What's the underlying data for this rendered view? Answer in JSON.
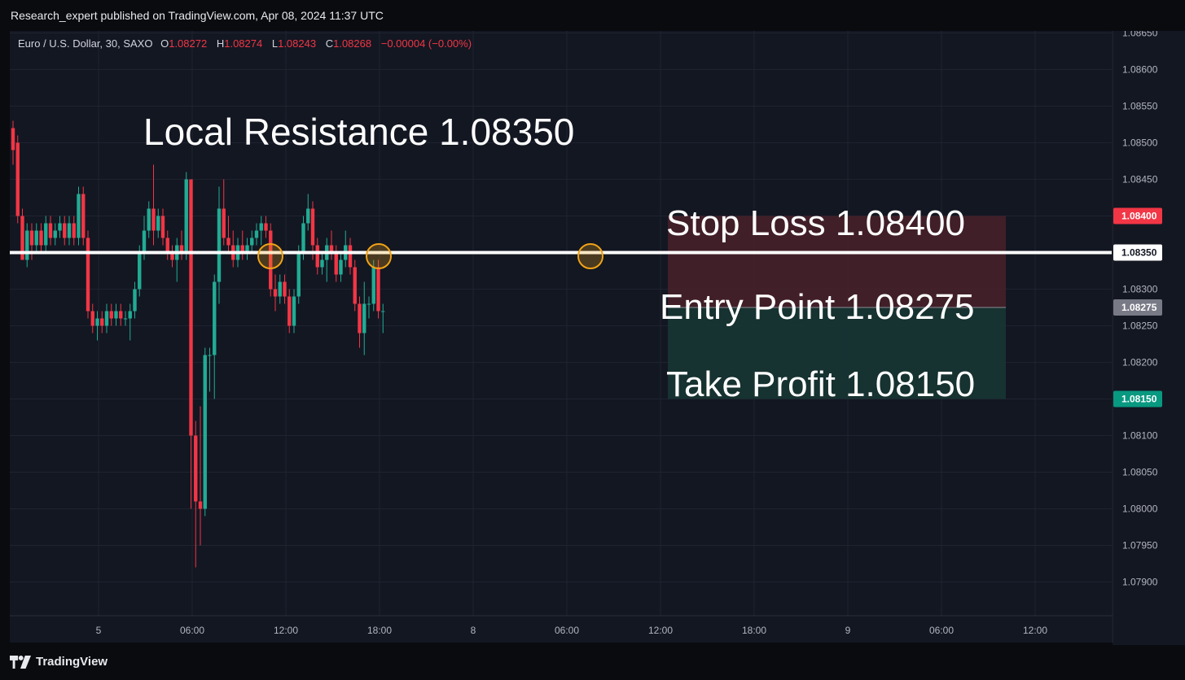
{
  "header": {
    "published": "Research_expert published on TradingView.com, Apr 08, 2024 11:37 UTC"
  },
  "legend": {
    "symbol": "Euro / U.S. Dollar, 30, SAXO",
    "o_label": "O",
    "o_value": "1.08272",
    "h_label": "H",
    "h_value": "1.08274",
    "l_label": "L",
    "l_value": "1.08243",
    "c_label": "C",
    "c_value": "1.08268",
    "change": "−0.00004 (−0.00%)"
  },
  "annotations": {
    "resistance": "Local Resistance 1.08350",
    "stop_loss": "Stop Loss 1.08400",
    "entry": "Entry Point 1.08275",
    "take_profit": "Take Profit 1.08150"
  },
  "footer": {
    "brand": "TradingView"
  },
  "colors": {
    "background": "#131722",
    "bull": "#22ab94",
    "bear": "#f23645",
    "grid": "#1f2330",
    "resistance_line": "#ffffff",
    "stop_zone": "#4a2129",
    "profit_zone": "#173533",
    "circle": "#f0a316"
  },
  "chart_data": {
    "type": "candlestick",
    "ylim": [
      1.0787,
      1.0866
    ],
    "y_ticks": [
      "1.08650",
      "1.08600",
      "1.08550",
      "1.08500",
      "1.08450",
      "1.08400",
      "1.08350",
      "1.08300",
      "1.08275",
      "1.08250",
      "1.08200",
      "1.08150",
      "1.08100",
      "1.08050",
      "1.08000",
      "1.07950",
      "1.07900"
    ],
    "x_ticks": [
      "5",
      "06:00",
      "12:00",
      "18:00",
      "8",
      "06:00",
      "12:00",
      "18:00",
      "9",
      "06:00",
      "12:00"
    ],
    "price_badges": [
      {
        "price": 1.084,
        "label": "1.08400",
        "color": "#f23645"
      },
      {
        "price": 1.0835,
        "label": "1.08350",
        "color": "#ffffff"
      },
      {
        "price": 1.08275,
        "label": "1.08275",
        "color": "#787b86"
      },
      {
        "price": 1.0815,
        "label": "1.08150",
        "color": "#089981"
      }
    ],
    "levels": {
      "resistance": 1.0835,
      "stop_loss": 1.084,
      "entry": 1.08275,
      "take_profit": 1.0815
    },
    "candles": [
      [
        1.0852,
        1.0853,
        1.0847,
        1.0849
      ],
      [
        1.085,
        1.0851,
        1.0839,
        1.084
      ],
      [
        1.084,
        1.0841,
        1.0834,
        1.0834
      ],
      [
        1.0834,
        1.0839,
        1.0833,
        1.0838
      ],
      [
        1.0838,
        1.0839,
        1.0834,
        1.0836
      ],
      [
        1.0836,
        1.0839,
        1.0835,
        1.0838
      ],
      [
        1.0838,
        1.0839,
        1.0835,
        1.0836
      ],
      [
        1.0836,
        1.084,
        1.0835,
        1.0839
      ],
      [
        1.0839,
        1.084,
        1.0836,
        1.0837
      ],
      [
        1.0837,
        1.0839,
        1.0836,
        1.0838
      ],
      [
        1.0838,
        1.084,
        1.0837,
        1.0839
      ],
      [
        1.0839,
        1.084,
        1.0836,
        1.0837
      ],
      [
        1.0837,
        1.084,
        1.0836,
        1.0839
      ],
      [
        1.0839,
        1.084,
        1.0836,
        1.0837
      ],
      [
        1.0837,
        1.0844,
        1.0836,
        1.0843
      ],
      [
        1.0843,
        1.0844,
        1.0836,
        1.0837
      ],
      [
        1.0837,
        1.0838,
        1.0826,
        1.0827
      ],
      [
        1.0827,
        1.0828,
        1.0824,
        1.0825
      ],
      [
        1.0825,
        1.0827,
        1.0823,
        1.0826
      ],
      [
        1.0826,
        1.0827,
        1.0824,
        1.0825
      ],
      [
        1.0825,
        1.0828,
        1.0824,
        1.0827
      ],
      [
        1.0827,
        1.0828,
        1.0825,
        1.0826
      ],
      [
        1.0826,
        1.0828,
        1.0825,
        1.0827
      ],
      [
        1.0827,
        1.0828,
        1.0825,
        1.0826
      ],
      [
        1.0826,
        1.0827,
        1.0825,
        1.0826
      ],
      [
        1.0826,
        1.0828,
        1.0823,
        1.0827
      ],
      [
        1.0827,
        1.0831,
        1.0826,
        1.083
      ],
      [
        1.083,
        1.0836,
        1.0829,
        1.0835
      ],
      [
        1.0835,
        1.084,
        1.0834,
        1.0838
      ],
      [
        1.0838,
        1.0842,
        1.0837,
        1.0841
      ],
      [
        1.0841,
        1.0847,
        1.0836,
        1.0838
      ],
      [
        1.0838,
        1.0841,
        1.0837,
        1.084
      ],
      [
        1.084,
        1.0841,
        1.0836,
        1.0837
      ],
      [
        1.0837,
        1.0838,
        1.0834,
        1.0835
      ],
      [
        1.0835,
        1.0836,
        1.0833,
        1.0834
      ],
      [
        1.0834,
        1.0837,
        1.0831,
        1.0836
      ],
      [
        1.0836,
        1.0838,
        1.0834,
        1.0835
      ],
      [
        1.0835,
        1.0846,
        1.0834,
        1.0845
      ],
      [
        1.0845,
        1.0845,
        1.08,
        1.081
      ],
      [
        1.081,
        1.0812,
        1.0792,
        1.0801
      ],
      [
        1.0801,
        1.0814,
        1.0795,
        1.08
      ],
      [
        1.08,
        1.0822,
        1.0799,
        1.0821
      ],
      [
        1.0821,
        1.0822,
        1.0816,
        1.0821
      ],
      [
        1.0821,
        1.0832,
        1.0815,
        1.0831
      ],
      [
        1.0831,
        1.0844,
        1.0828,
        1.0841
      ],
      [
        1.0841,
        1.0845,
        1.0836,
        1.0837
      ],
      [
        1.0837,
        1.084,
        1.0835,
        1.0836
      ],
      [
        1.0836,
        1.0838,
        1.0833,
        1.0834
      ],
      [
        1.0834,
        1.0837,
        1.0833,
        1.0836
      ],
      [
        1.0836,
        1.0838,
        1.0834,
        1.0835
      ],
      [
        1.0835,
        1.0837,
        1.0834,
        1.0836
      ],
      [
        1.0836,
        1.0838,
        1.0835,
        1.0837
      ],
      [
        1.0837,
        1.0839,
        1.0836,
        1.0838
      ],
      [
        1.0838,
        1.084,
        1.0836,
        1.0839
      ],
      [
        1.0839,
        1.084,
        1.0837,
        1.0838
      ],
      [
        1.0838,
        1.0839,
        1.0829,
        1.083
      ],
      [
        1.083,
        1.0832,
        1.0827,
        1.0829
      ],
      [
        1.0829,
        1.0832,
        1.0828,
        1.0831
      ],
      [
        1.0831,
        1.0832,
        1.0828,
        1.0829
      ],
      [
        1.0829,
        1.083,
        1.0824,
        1.0825
      ],
      [
        1.0825,
        1.083,
        1.0824,
        1.0829
      ],
      [
        1.0829,
        1.0836,
        1.0828,
        1.0835
      ],
      [
        1.0835,
        1.084,
        1.0834,
        1.0839
      ],
      [
        1.0839,
        1.0843,
        1.0838,
        1.0841
      ],
      [
        1.0841,
        1.0842,
        1.0834,
        1.0836
      ],
      [
        1.0836,
        1.0837,
        1.0832,
        1.0833
      ],
      [
        1.0833,
        1.0835,
        1.0832,
        1.0834
      ],
      [
        1.0834,
        1.0837,
        1.0831,
        1.0836
      ],
      [
        1.0836,
        1.0838,
        1.0834,
        1.0835
      ],
      [
        1.0835,
        1.0836,
        1.0831,
        1.0832
      ],
      [
        1.0832,
        1.0835,
        1.0831,
        1.0834
      ],
      [
        1.0834,
        1.0838,
        1.0833,
        1.0836
      ],
      [
        1.0836,
        1.0837,
        1.0832,
        1.0833
      ],
      [
        1.0833,
        1.0834,
        1.0827,
        1.0828
      ],
      [
        1.0828,
        1.0829,
        1.0822,
        1.0824
      ],
      [
        1.0824,
        1.0831,
        1.0821,
        1.0828
      ],
      [
        1.0828,
        1.0829,
        1.0826,
        1.0828
      ],
      [
        1.0828,
        1.0834,
        1.0827,
        1.0833
      ],
      [
        1.0833,
        1.0834,
        1.0826,
        1.0827
      ],
      [
        1.0827,
        1.0828,
        1.0824,
        1.0827
      ]
    ]
  }
}
